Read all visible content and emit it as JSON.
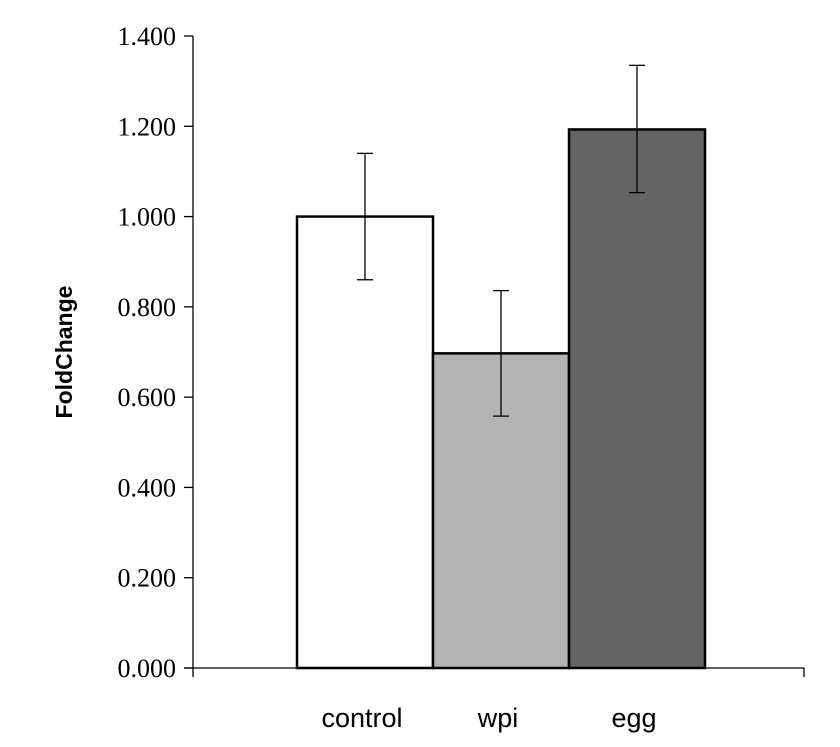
{
  "chart_data": {
    "type": "bar",
    "title": "",
    "xlabel": "",
    "ylabel": "FoldChange",
    "ylim": [
      0,
      1.4
    ],
    "y_ticks": [
      "0.000",
      "0.200",
      "0.400",
      "0.600",
      "0.800",
      "1.000",
      "1.200",
      "1.400"
    ],
    "y_tick_values": [
      0,
      0.2,
      0.4,
      0.6,
      0.8,
      1.0,
      1.2,
      1.4
    ],
    "categories": [
      "control",
      "wpi",
      "egg"
    ],
    "values": [
      1.0,
      0.697,
      1.193
    ],
    "error_low": [
      0.86,
      0.558,
      1.053
    ],
    "error_high": [
      1.14,
      0.836,
      1.335
    ],
    "bar_colors": [
      "#ffffff",
      "#b4b4b4",
      "#646464"
    ],
    "grid": false,
    "legend": "none"
  }
}
